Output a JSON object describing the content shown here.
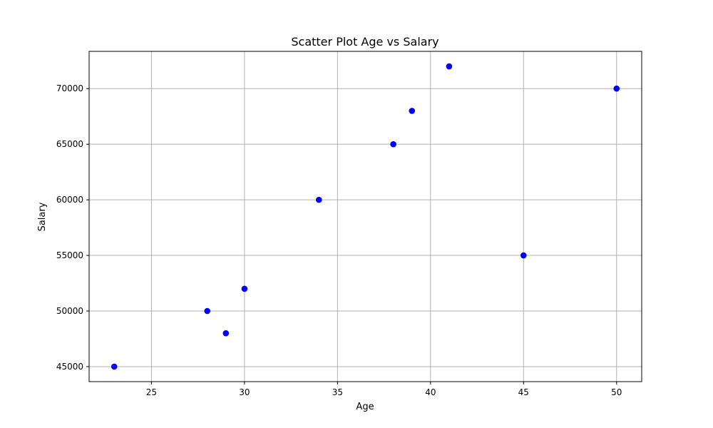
{
  "chart_data": {
    "type": "scatter",
    "title": "Scatter Plot Age vs Salary",
    "xlabel": "Age",
    "ylabel": "Salary",
    "xlim": [
      21.65,
      51.35
    ],
    "ylim": [
      43650,
      73350
    ],
    "xticks": [
      25,
      30,
      35,
      40,
      45,
      50
    ],
    "yticks": [
      45000,
      50000,
      55000,
      60000,
      65000,
      70000
    ],
    "grid": true,
    "points": [
      {
        "x": 23,
        "y": 45000
      },
      {
        "x": 28,
        "y": 50000
      },
      {
        "x": 29,
        "y": 48000
      },
      {
        "x": 30,
        "y": 52000
      },
      {
        "x": 34,
        "y": 60000
      },
      {
        "x": 38,
        "y": 65000
      },
      {
        "x": 39,
        "y": 68000
      },
      {
        "x": 41,
        "y": 72000
      },
      {
        "x": 45,
        "y": 55000
      },
      {
        "x": 50,
        "y": 70000
      }
    ],
    "colors": {
      "point": "#0000ff",
      "grid": "#b0b0b0",
      "axes": "#000000"
    }
  }
}
